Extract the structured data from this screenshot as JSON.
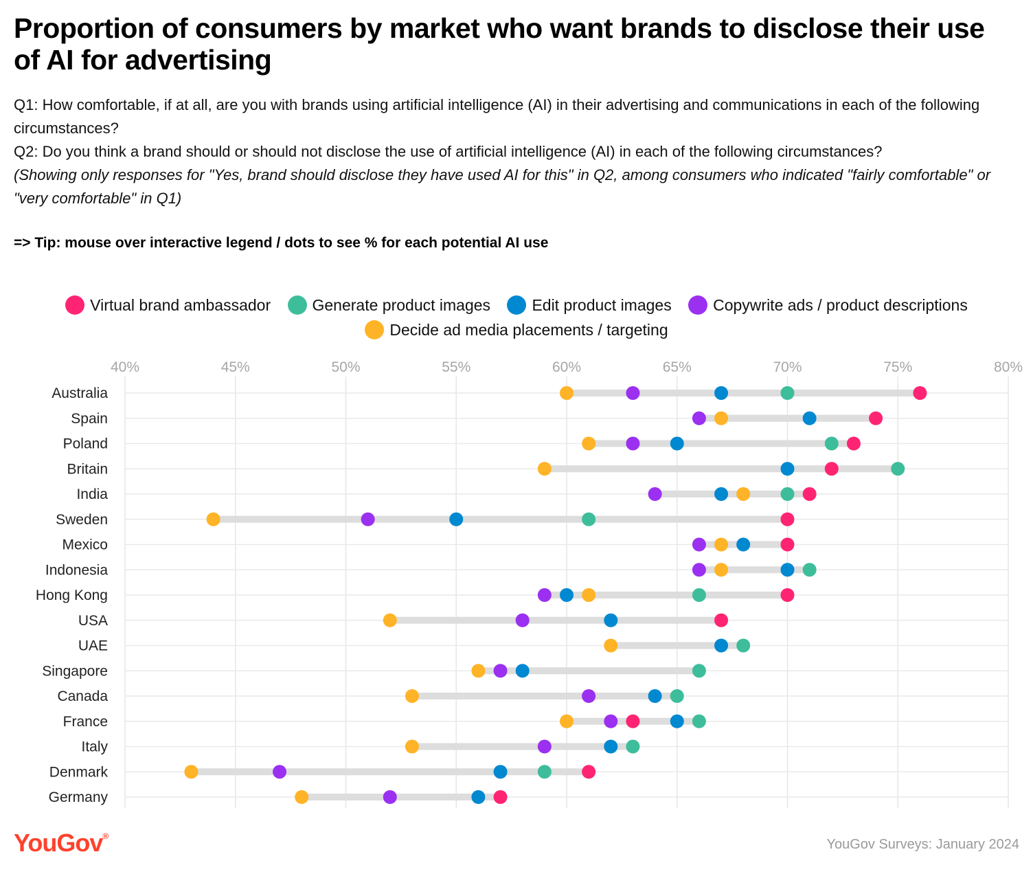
{
  "title": "Proportion of consumers by market who want brands to disclose their use of AI for advertising",
  "q1": "Q1: How comfortable, if at all, are you with brands using artificial intelligence (AI) in their advertising and communications in each of the following circumstances?",
  "q2": "Q2: Do you think a brand should or should not disclose the use of artificial intelligence (AI) in each of the following circumstances?",
  "note": "(Showing only responses for \"Yes, brand should disclose they have used AI for this\" in Q2, among consumers who indicated \"fairly comfortable\" or \"very comfortable\" in Q1)",
  "tip": "=> Tip: mouse over interactive legend / dots to see % for each potential AI use",
  "legend": [
    {
      "label": "Virtual brand ambassador",
      "color": "#ff2473"
    },
    {
      "label": "Generate product images",
      "color": "#3ebd9b"
    },
    {
      "label": "Edit product images",
      "color": "#0088d1"
    },
    {
      "label": "Copywrite ads / product descriptions",
      "color": "#9b30f0"
    },
    {
      "label": "Decide ad media placements / targeting",
      "color": "#ffb326"
    }
  ],
  "logo": "YouGov",
  "logo_mark": "®",
  "source": "YouGov Surveys: January 2024",
  "chart_data": {
    "type": "scatter",
    "subtype": "dot-range",
    "xlim": [
      40,
      80
    ],
    "xticks": [
      "40%",
      "45%",
      "50%",
      "55%",
      "60%",
      "65%",
      "70%",
      "75%",
      "80%"
    ],
    "xtick_values": [
      40,
      45,
      50,
      55,
      60,
      65,
      70,
      75,
      80
    ],
    "unit": "%",
    "categories": [
      "Australia",
      "Spain",
      "Poland",
      "Britain",
      "India",
      "Sweden",
      "Mexico",
      "Indonesia",
      "Hong Kong",
      "USA",
      "UAE",
      "Singapore",
      "Canada",
      "France",
      "Italy",
      "Denmark",
      "Germany"
    ],
    "series": [
      {
        "name": "Virtual brand ambassador",
        "color": "#ff2473",
        "values": [
          76,
          74,
          73,
          72,
          71,
          70,
          70,
          null,
          70,
          67,
          null,
          null,
          null,
          63,
          null,
          61,
          57
        ]
      },
      {
        "name": "Generate product images",
        "color": "#3ebd9b",
        "values": [
          70,
          null,
          72,
          75,
          70,
          61,
          null,
          71,
          66,
          null,
          68,
          66,
          65,
          66,
          63,
          59,
          null
        ]
      },
      {
        "name": "Edit product images",
        "color": "#0088d1",
        "values": [
          67,
          71,
          65,
          70,
          67,
          55,
          68,
          70,
          60,
          62,
          67,
          58,
          64,
          65,
          62,
          57,
          56
        ]
      },
      {
        "name": "Copywrite ads / product descriptions",
        "color": "#9b30f0",
        "values": [
          63,
          66,
          63,
          null,
          64,
          51,
          66,
          66,
          59,
          58,
          null,
          57,
          61,
          62,
          59,
          47,
          52
        ]
      },
      {
        "name": "Decide ad media placements / targeting",
        "color": "#ffb326",
        "values": [
          60,
          67,
          61,
          59,
          68,
          44,
          67,
          67,
          61,
          52,
          62,
          56,
          53,
          60,
          53,
          43,
          48
        ]
      }
    ]
  }
}
